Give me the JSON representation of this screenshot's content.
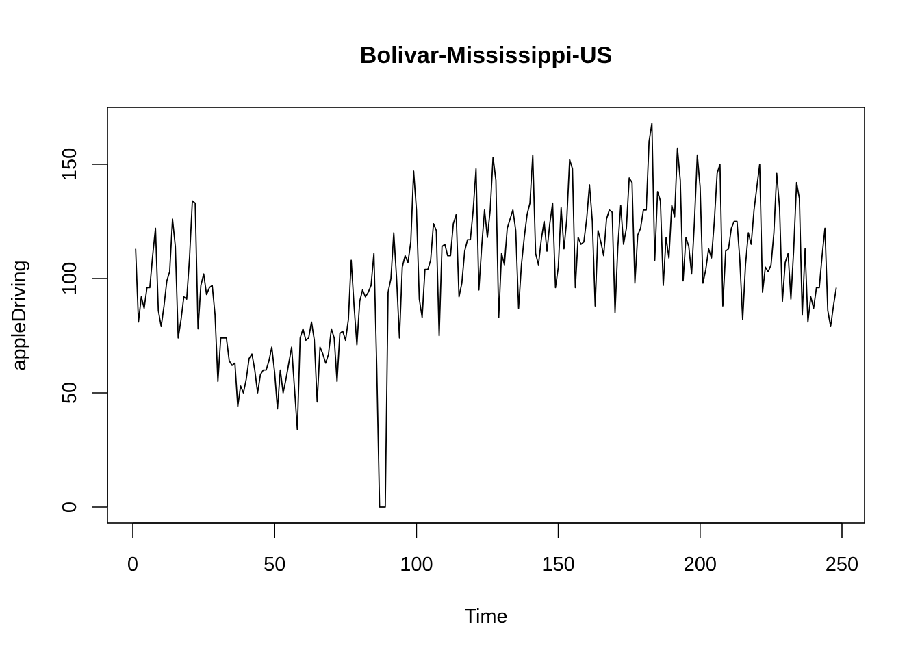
{
  "chart_data": {
    "type": "line",
    "title": "Bolivar-Mississippi-US",
    "xlabel": "Time",
    "ylabel": "appleDriving",
    "xlim": [
      1,
      248
    ],
    "ylim": [
      0,
      168
    ],
    "xticks": [
      0,
      50,
      100,
      150,
      200,
      250
    ],
    "yticks": [
      0,
      50,
      100,
      150
    ],
    "grid": false,
    "legend": "none",
    "line_color": "#000000",
    "series": [
      {
        "x": [
          1,
          2,
          3,
          4,
          5,
          6,
          7,
          8,
          9,
          10,
          11,
          12,
          13,
          14,
          15,
          16,
          17,
          18,
          19,
          20,
          21,
          22,
          23,
          24,
          25,
          26,
          27,
          28,
          29,
          30,
          31,
          32,
          33,
          34,
          35,
          36,
          37,
          38,
          39,
          40,
          41,
          42,
          43,
          44,
          45,
          46,
          47,
          48,
          49,
          50,
          51,
          52,
          53,
          54,
          55,
          56,
          57,
          58,
          59,
          60,
          61,
          62,
          63,
          64,
          65,
          66,
          67,
          68,
          69,
          70,
          71,
          72,
          73,
          74,
          75,
          76,
          77,
          78,
          79,
          80,
          81,
          82,
          83,
          84,
          85,
          86,
          87,
          88,
          89,
          90,
          91,
          92,
          93,
          94,
          95,
          96,
          97,
          98,
          99,
          100,
          101,
          102,
          103,
          104,
          105,
          106,
          107,
          108,
          109,
          110,
          111,
          112,
          113,
          114,
          115,
          116,
          117,
          118,
          119,
          120,
          121,
          122,
          123,
          124,
          125,
          126,
          127,
          128,
          129,
          130,
          131,
          132,
          133,
          134,
          135,
          136,
          137,
          138,
          139,
          140,
          141,
          142,
          143,
          144,
          145,
          146,
          147,
          148,
          149,
          150,
          151,
          152,
          153,
          154,
          155,
          156,
          157,
          158,
          159,
          160,
          161,
          162,
          163,
          164,
          165,
          166,
          167,
          168,
          169,
          170,
          171,
          172,
          173,
          174,
          175,
          176,
          177,
          178,
          179,
          180,
          181,
          182,
          183,
          184,
          185,
          186,
          187,
          188,
          189,
          190,
          191,
          192,
          193,
          194,
          195,
          196,
          197,
          198,
          199,
          200,
          201,
          202,
          203,
          204,
          205,
          206,
          207,
          208,
          209,
          210,
          211,
          212,
          213,
          214,
          215,
          216,
          217,
          218,
          219,
          220,
          221,
          222,
          223,
          224,
          225,
          226,
          227,
          228,
          229,
          230,
          231,
          232,
          233,
          234,
          235,
          236,
          237,
          238,
          239,
          240,
          241,
          242,
          243,
          244,
          245,
          246,
          247,
          248
        ],
        "values": [
          113,
          81,
          92,
          87,
          96,
          96,
          110,
          122,
          86,
          79,
          88,
          99,
          103,
          126,
          114,
          74,
          82,
          92,
          91,
          109,
          134,
          133,
          78,
          97,
          102,
          93,
          96,
          97,
          84,
          55,
          74,
          74,
          74,
          64,
          62,
          63,
          44,
          53,
          50,
          56,
          65,
          67,
          60,
          50,
          58,
          60,
          60,
          64,
          70,
          59,
          43,
          60,
          50,
          56,
          63,
          70,
          52,
          34,
          74,
          78,
          73,
          74,
          81,
          73,
          46,
          70,
          67,
          63,
          67,
          78,
          74,
          55,
          76,
          77,
          73,
          82,
          108,
          88,
          71,
          90,
          95,
          92,
          94,
          97,
          111,
          61,
          0,
          0,
          0,
          94,
          100,
          120,
          100,
          74,
          105,
          110,
          107,
          116,
          147,
          130,
          91,
          83,
          104,
          104,
          108,
          124,
          121,
          75,
          114,
          115,
          110,
          110,
          124,
          128,
          92,
          98,
          112,
          117,
          117,
          130,
          148,
          95,
          114,
          130,
          118,
          130,
          153,
          143,
          83,
          111,
          106,
          122,
          126,
          130,
          121,
          87,
          106,
          118,
          128,
          133,
          154,
          111,
          106,
          117,
          125,
          112,
          124,
          133,
          96,
          105,
          131,
          113,
          126,
          152,
          148,
          96,
          118,
          115,
          116,
          126,
          141,
          125,
          88,
          121,
          116,
          110,
          126,
          130,
          129,
          85,
          114,
          132,
          115,
          122,
          144,
          142,
          98,
          119,
          122,
          130,
          130,
          160,
          168,
          108,
          138,
          134,
          97,
          118,
          109,
          132,
          127,
          157,
          143,
          99,
          118,
          114,
          102,
          125,
          154,
          140,
          98,
          104,
          113,
          109,
          125,
          146,
          150,
          88,
          112,
          113,
          122,
          125,
          125,
          108,
          82,
          106,
          120,
          115,
          130,
          140,
          150,
          94,
          105,
          103,
          106,
          120,
          146,
          131,
          90,
          107,
          111,
          91,
          113,
          142,
          135,
          84,
          113,
          81,
          92,
          87,
          96,
          96,
          110,
          122,
          86,
          79,
          88,
          96
        ]
      }
    ]
  }
}
